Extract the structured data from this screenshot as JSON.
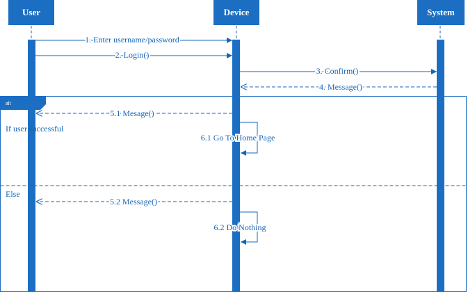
{
  "colors": {
    "primary": "#1b6ec2",
    "line": "#1565b8",
    "background": "#ffffff"
  },
  "participants": {
    "user": "User",
    "device": "Device",
    "system": "System"
  },
  "messages": {
    "m1": "1. Enter username/password",
    "m2": "2. Login()",
    "m3": "3. Confirm()",
    "m4": "4. Message()",
    "m51": "5.1 Mesage()",
    "m61": "6.1 Go To Home Page",
    "m52": "5.2 Message()",
    "m62": "6.2 Do Nothing"
  },
  "fragment": {
    "tag": "alt",
    "guard_if": "If user successful",
    "guard_else": "Else"
  }
}
